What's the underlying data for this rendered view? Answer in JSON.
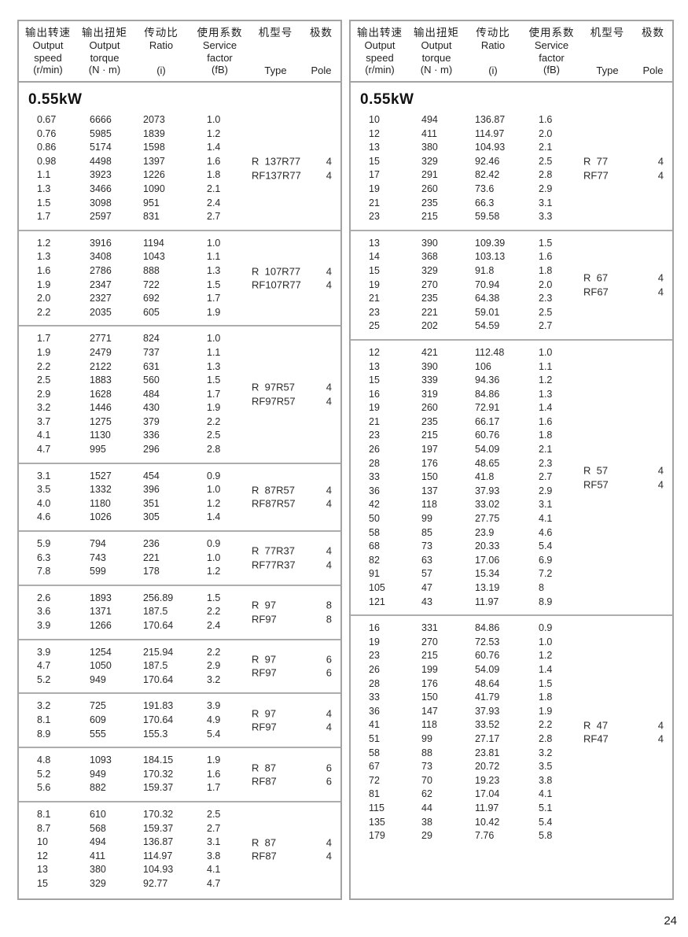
{
  "page": {
    "number": "24"
  },
  "section_label": "0.55kW",
  "header": {
    "cols": [
      {
        "key": "output-speed",
        "zh": "输出转速",
        "en": [
          "Output",
          "speed"
        ],
        "unit": "(r/min)"
      },
      {
        "key": "output-torque",
        "zh": "输出扭矩",
        "en": [
          "Output",
          "torque"
        ],
        "unit": "(N · m)"
      },
      {
        "key": "ratio",
        "zh": "传动比",
        "en": [
          "Ratio"
        ],
        "unit": "(i)"
      },
      {
        "key": "service-factor",
        "zh": "使用系数",
        "en": [
          "Service",
          "factor"
        ],
        "unit": "(fB)"
      },
      {
        "key": "type",
        "zh": "机型号",
        "en": [],
        "unit": "Type"
      },
      {
        "key": "pole",
        "zh": "极数",
        "en": [],
        "unit": "Pole"
      }
    ]
  },
  "tables": [
    {
      "side": "left",
      "groups": [
        {
          "kw": "0.55kW",
          "types": [
            {
              "type": "R  137R77",
              "pole": "4"
            },
            {
              "type": "RF137R77",
              "pole": "4"
            }
          ],
          "rows": [
            [
              "0.67",
              "6666",
              "2073",
              "1.0"
            ],
            [
              "0.76",
              "5985",
              "1839",
              "1.2"
            ],
            [
              "0.86",
              "5174",
              "1598",
              "1.4"
            ],
            [
              "0.98",
              "4498",
              "1397",
              "1.6"
            ],
            [
              "1.1",
              "3923",
              "1226",
              "1.8"
            ],
            [
              "1.3",
              "3466",
              "1090",
              "2.1"
            ],
            [
              "1.5",
              "3098",
              "951",
              "2.4"
            ],
            [
              "1.7",
              "2597",
              "831",
              "2.7"
            ]
          ]
        },
        {
          "types": [
            {
              "type": "R  107R77",
              "pole": "4"
            },
            {
              "type": "RF107R77",
              "pole": "4"
            }
          ],
          "rows": [
            [
              "1.2",
              "3916",
              "1194",
              "1.0"
            ],
            [
              "1.3",
              "3408",
              "1043",
              "1.1"
            ],
            [
              "1.6",
              "2786",
              "888",
              "1.3"
            ],
            [
              "1.9",
              "2347",
              "722",
              "1.5"
            ],
            [
              "2.0",
              "2327",
              "692",
              "1.7"
            ],
            [
              "2.2",
              "2035",
              "605",
              "1.9"
            ]
          ]
        },
        {
          "types": [
            {
              "type": "R  97R57",
              "pole": "4"
            },
            {
              "type": "RF97R57",
              "pole": "4"
            }
          ],
          "rows": [
            [
              "1.7",
              "2771",
              "824",
              "1.0"
            ],
            [
              "1.9",
              "2479",
              "737",
              "1.1"
            ],
            [
              "2.2",
              "2122",
              "631",
              "1.3"
            ],
            [
              "2.5",
              "1883",
              "560",
              "1.5"
            ],
            [
              "2.9",
              "1628",
              "484",
              "1.7"
            ],
            [
              "3.2",
              "1446",
              "430",
              "1.9"
            ],
            [
              "3.7",
              "1275",
              "379",
              "2.2"
            ],
            [
              "4.1",
              "1130",
              "336",
              "2.5"
            ],
            [
              "4.7",
              "995",
              "296",
              "2.8"
            ]
          ]
        },
        {
          "types": [
            {
              "type": "R  87R57",
              "pole": "4"
            },
            {
              "type": "RF87R57",
              "pole": "4"
            }
          ],
          "rows": [
            [
              "3.1",
              "1527",
              "454",
              "0.9"
            ],
            [
              "3.5",
              "1332",
              "396",
              "1.0"
            ],
            [
              "4.0",
              "1180",
              "351",
              "1.2"
            ],
            [
              "4.6",
              "1026",
              "305",
              "1.4"
            ]
          ]
        },
        {
          "types": [
            {
              "type": "R  77R37",
              "pole": "4"
            },
            {
              "type": "RF77R37",
              "pole": "4"
            }
          ],
          "rows": [
            [
              "5.9",
              "794",
              "236",
              "0.9"
            ],
            [
              "6.3",
              "743",
              "221",
              "1.0"
            ],
            [
              "7.8",
              "599",
              "178",
              "1.2"
            ]
          ]
        },
        {
          "types": [
            {
              "type": "R  97",
              "pole": "8"
            },
            {
              "type": "RF97",
              "pole": "8"
            }
          ],
          "rows": [
            [
              "2.6",
              "1893",
              "256.89",
              "1.5"
            ],
            [
              "3.6",
              "1371",
              "187.5",
              "2.2"
            ],
            [
              "3.9",
              "1266",
              "170.64",
              "2.4"
            ]
          ]
        },
        {
          "types": [
            {
              "type": "R  97",
              "pole": "6"
            },
            {
              "type": "RF97",
              "pole": "6"
            }
          ],
          "rows": [
            [
              "3.9",
              "1254",
              "215.94",
              "2.2"
            ],
            [
              "4.7",
              "1050",
              "187.5",
              "2.9"
            ],
            [
              "5.2",
              "949",
              "170.64",
              "3.2"
            ]
          ]
        },
        {
          "types": [
            {
              "type": "R  97",
              "pole": "4"
            },
            {
              "type": "RF97",
              "pole": "4"
            }
          ],
          "rows": [
            [
              "3.2",
              "725",
              "191.83",
              "3.9"
            ],
            [
              "8.1",
              "609",
              "170.64",
              "4.9"
            ],
            [
              "8.9",
              "555",
              "155.3",
              "5.4"
            ]
          ]
        },
        {
          "types": [
            {
              "type": "R  87",
              "pole": "6"
            },
            {
              "type": "RF87",
              "pole": "6"
            }
          ],
          "rows": [
            [
              "4.8",
              "1093",
              "184.15",
              "1.9"
            ],
            [
              "5.2",
              "949",
              "170.32",
              "1.6"
            ],
            [
              "5.6",
              "882",
              "159.37",
              "1.7"
            ]
          ]
        },
        {
          "types": [
            {
              "type": "R  87",
              "pole": "4"
            },
            {
              "type": "RF87",
              "pole": "4"
            }
          ],
          "rows": [
            [
              "8.1",
              "610",
              "170.32",
              "2.5"
            ],
            [
              "8.7",
              "568",
              "159.37",
              "2.7"
            ],
            [
              "10",
              "494",
              "136.87",
              "3.1"
            ],
            [
              "12",
              "411",
              "114.97",
              "3.8"
            ],
            [
              "13",
              "380",
              "104.93",
              "4.1"
            ],
            [
              "15",
              "329",
              "92.77",
              "4.7"
            ]
          ]
        }
      ]
    },
    {
      "side": "right",
      "groups": [
        {
          "kw": "0.55kW",
          "types": [
            {
              "type": "R  77",
              "pole": "4"
            },
            {
              "type": "RF77",
              "pole": "4"
            }
          ],
          "rows": [
            [
              "10",
              "494",
              "136.87",
              "1.6"
            ],
            [
              "12",
              "411",
              "114.97",
              "2.0"
            ],
            [
              "13",
              "380",
              "104.93",
              "2.1"
            ],
            [
              "15",
              "329",
              "92.46",
              "2.5"
            ],
            [
              "17",
              "291",
              "82.42",
              "2.8"
            ],
            [
              "19",
              "260",
              "73.6",
              "2.9"
            ],
            [
              "21",
              "235",
              "66.3",
              "3.1"
            ],
            [
              "23",
              "215",
              "59.58",
              "3.3"
            ]
          ]
        },
        {
          "types": [
            {
              "type": "R  67",
              "pole": "4"
            },
            {
              "type": "RF67",
              "pole": "4"
            }
          ],
          "rows": [
            [
              "13",
              "390",
              "109.39",
              "1.5"
            ],
            [
              "14",
              "368",
              "103.13",
              "1.6"
            ],
            [
              "15",
              "329",
              "91.8",
              "1.8"
            ],
            [
              "19",
              "270",
              "70.94",
              "2.0"
            ],
            [
              "21",
              "235",
              "64.38",
              "2.3"
            ],
            [
              "23",
              "221",
              "59.01",
              "2.5"
            ],
            [
              "25",
              "202",
              "54.59",
              "2.7"
            ]
          ]
        },
        {
          "types": [
            {
              "type": "R  57",
              "pole": "4"
            },
            {
              "type": "RF57",
              "pole": "4"
            }
          ],
          "rows": [
            [
              "12",
              "421",
              "112.48",
              "1.0"
            ],
            [
              "13",
              "390",
              "106",
              "1.1"
            ],
            [
              "15",
              "339",
              "94.36",
              "1.2"
            ],
            [
              "16",
              "319",
              "84.86",
              "1.3"
            ],
            [
              "19",
              "260",
              "72.91",
              "1.4"
            ],
            [
              "21",
              "235",
              "66.17",
              "1.6"
            ],
            [
              "23",
              "215",
              "60.76",
              "1.8"
            ],
            [
              "26",
              "197",
              "54.09",
              "2.1"
            ],
            [
              "28",
              "176",
              "48.65",
              "2.3"
            ],
            [
              "33",
              "150",
              "41.8",
              "2.7"
            ],
            [
              "36",
              "137",
              "37.93",
              "2.9"
            ],
            [
              "42",
              "118",
              "33.02",
              "3.1"
            ],
            [
              "50",
              "99",
              "27.75",
              "4.1"
            ],
            [
              "58",
              "85",
              "23.9",
              "4.6"
            ],
            [
              "68",
              "73",
              "20.33",
              "5.4"
            ],
            [
              "82",
              "63",
              "17.06",
              "6.9"
            ],
            [
              "91",
              "57",
              "15.34",
              "7.2"
            ],
            [
              "105",
              "47",
              "13.19",
              "8"
            ],
            [
              "121",
              "43",
              "11.97",
              "8.9"
            ]
          ]
        },
        {
          "types": [
            {
              "type": "R  47",
              "pole": "4"
            },
            {
              "type": "RF47",
              "pole": "4"
            }
          ],
          "rows": [
            [
              "16",
              "331",
              "84.86",
              "0.9"
            ],
            [
              "19",
              "270",
              "72.53",
              "1.0"
            ],
            [
              "23",
              "215",
              "60.76",
              "1.2"
            ],
            [
              "26",
              "199",
              "54.09",
              "1.4"
            ],
            [
              "28",
              "176",
              "48.64",
              "1.5"
            ],
            [
              "33",
              "150",
              "41.79",
              "1.8"
            ],
            [
              "36",
              "147",
              "37.93",
              "1.9"
            ],
            [
              "41",
              "118",
              "33.52",
              "2.2"
            ],
            [
              "51",
              "99",
              "27.17",
              "2.8"
            ],
            [
              "58",
              "88",
              "23.81",
              "3.2"
            ],
            [
              "67",
              "73",
              "20.72",
              "3.5"
            ],
            [
              "72",
              "70",
              "19.23",
              "3.8"
            ],
            [
              "81",
              "62",
              "17.04",
              "4.1"
            ],
            [
              "115",
              "44",
              "11.97",
              "5.1"
            ],
            [
              "135",
              "38",
              "10.42",
              "5.4"
            ],
            [
              "179",
              "29",
              "7.76",
              "5.8"
            ]
          ]
        }
      ]
    }
  ]
}
